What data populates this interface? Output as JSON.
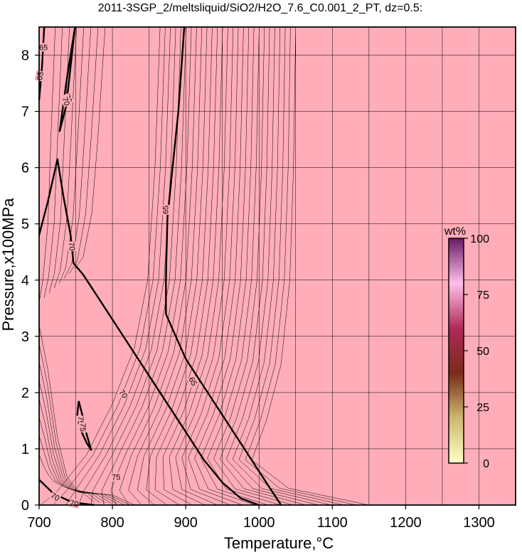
{
  "chart_data": {
    "type": "contour",
    "title": "2011-3SGP_2/meltsliquid/SiO2/H2O_7.6_C0.001_2_PT, dz=0.5:",
    "xlabel": "Temperature,°C",
    "ylabel": "Pressure,x100MPa",
    "xlim": [
      700,
      1350
    ],
    "ylim": [
      0,
      8.5
    ],
    "x_ticks": [
      700,
      800,
      900,
      1000,
      1100,
      1200,
      1300
    ],
    "y_ticks": [
      0,
      1,
      2,
      3,
      4,
      5,
      6,
      7,
      8
    ],
    "grid": true,
    "fill_color": "#ffadb9",
    "colorbar": {
      "title": "wt%",
      "ticks": [
        0,
        25,
        50,
        75,
        100
      ],
      "colors": [
        "#ffffc8",
        "#cdb870",
        "#7a2a1a",
        "#b02a5a",
        "#ffbfe8",
        "#6a1a6a"
      ]
    },
    "contour_labels": [
      "65",
      "65",
      "70",
      "70",
      "70",
      "70",
      "65",
      "65",
      "75",
      "75",
      "75",
      "70",
      "70"
    ],
    "contours": [
      {
        "level": 65,
        "points": [
          [
            707,
            8.5
          ],
          [
            704,
            7.8
          ],
          [
            700,
            7.2
          ]
        ]
      },
      {
        "level": 70,
        "points": [
          [
            749,
            8.5
          ],
          [
            738,
            7.6
          ],
          [
            728,
            6.65
          ],
          [
            737,
            7.1
          ],
          [
            749,
            8.5
          ]
        ]
      },
      {
        "level": 65,
        "points": [
          [
            898,
            8.5
          ],
          [
            890,
            7.0
          ],
          [
            882,
            6.0
          ],
          [
            875,
            5.1
          ],
          [
            873,
            4.0
          ],
          [
            873,
            3.4
          ],
          [
            883,
            3.1
          ],
          [
            900,
            2.6
          ],
          [
            925,
            2.1
          ],
          [
            950,
            1.6
          ],
          [
            975,
            1.1
          ],
          [
            1000,
            0.6
          ],
          [
            1020,
            0.2
          ],
          [
            1030,
            0
          ]
        ]
      },
      {
        "level": 70,
        "points": [
          [
            700,
            4.8
          ],
          [
            712,
            5.4
          ],
          [
            725,
            6.15
          ],
          [
            733,
            5.5
          ],
          [
            743,
            4.8
          ],
          [
            747,
            4.3
          ],
          [
            760,
            4.1
          ],
          [
            780,
            3.7
          ],
          [
            800,
            3.3
          ],
          [
            825,
            2.8
          ],
          [
            850,
            2.3
          ],
          [
            875,
            1.8
          ],
          [
            900,
            1.3
          ],
          [
            925,
            0.8
          ],
          [
            950,
            0.4
          ],
          [
            975,
            0.12
          ],
          [
            1000,
            0
          ]
        ]
      },
      {
        "level": 75,
        "points": [
          [
            754,
            1.85
          ],
          [
            752,
            1.6
          ],
          [
            758,
            1.3
          ],
          [
            765,
            1.1
          ],
          [
            771,
            0.98
          ],
          [
            765,
            1.25
          ],
          [
            760,
            1.55
          ],
          [
            754,
            1.85
          ]
        ]
      },
      {
        "level": 70,
        "points": [
          [
            700,
            0.45
          ],
          [
            720,
            0.2
          ],
          [
            745,
            0.05
          ],
          [
            775,
            0
          ]
        ]
      }
    ]
  }
}
